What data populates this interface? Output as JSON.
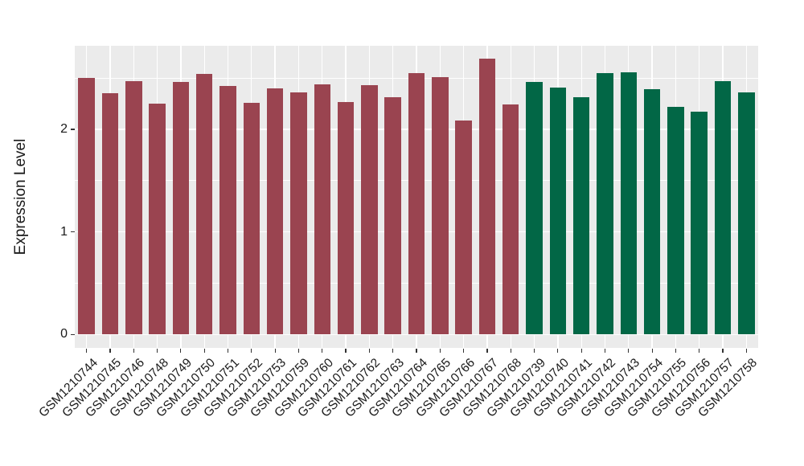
{
  "chart_data": {
    "type": "bar",
    "title": "",
    "xlabel": "",
    "ylabel": "Expression Level",
    "ylim": [
      -0.13,
      2.815
    ],
    "yticks": [
      0,
      1,
      2
    ],
    "minor_gridlines": [
      0.5,
      1.5,
      2.5
    ],
    "grid": "white-on-grey-panel",
    "legend_position": "none",
    "bar_width_fraction": 0.7,
    "series": [
      {
        "color": "#9A4450",
        "categories": [
          "GSM1210744",
          "GSM1210745",
          "GSM1210746",
          "GSM1210748",
          "GSM1210749",
          "GSM1210750",
          "GSM1210751",
          "GSM1210752",
          "GSM1210753",
          "GSM1210759",
          "GSM1210760",
          "GSM1210761",
          "GSM1210762",
          "GSM1210763",
          "GSM1210764",
          "GSM1210765",
          "GSM1210766",
          "GSM1210767",
          "GSM1210768"
        ],
        "values": [
          2.5,
          2.35,
          2.47,
          2.25,
          2.46,
          2.54,
          2.42,
          2.26,
          2.4,
          2.36,
          2.44,
          2.27,
          2.43,
          2.31,
          2.55,
          2.51,
          2.09,
          2.69,
          2.24
        ]
      },
      {
        "color": "#026746",
        "categories": [
          "GSM1210739",
          "GSM1210740",
          "GSM1210741",
          "GSM1210742",
          "GSM1210743",
          "GSM1210754",
          "GSM1210755",
          "GSM1210756",
          "GSM1210757",
          "GSM1210758"
        ],
        "values": [
          2.46,
          2.41,
          2.31,
          2.55,
          2.56,
          2.39,
          2.22,
          2.17,
          2.47,
          2.36
        ]
      }
    ],
    "colors": {
      "panel_background": "#EBEBEB",
      "gridline": "#FFFFFF",
      "axis_text": "#1A1A1A",
      "tick_mark": "#333333",
      "figure_background": "#FFFFFF"
    }
  }
}
